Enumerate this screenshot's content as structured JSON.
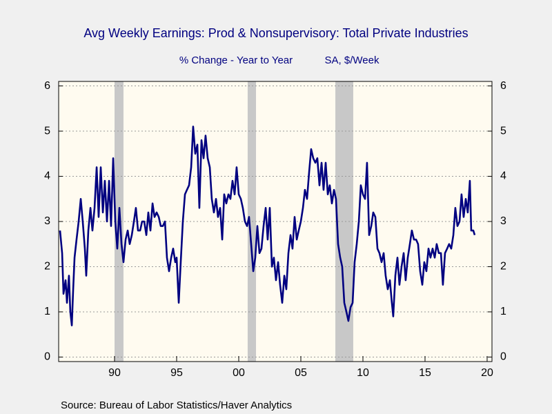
{
  "chart_data": {
    "type": "line",
    "title": "Avg Weekly Earnings: Prod & Nonsupervisory: Total Private Industries",
    "subtitle": [
      "% Change - Year to Year",
      "SA, $/Week"
    ],
    "source": "Source:  Bureau of Labor Statistics/Haver Analytics",
    "xlim": [
      1985.5,
      2020.39
    ],
    "xticks": [
      {
        "value": 1990,
        "label": "90"
      },
      {
        "value": 1995,
        "label": "95"
      },
      {
        "value": 2000,
        "label": "00"
      },
      {
        "value": 2005,
        "label": "05"
      },
      {
        "value": 2010,
        "label": "10"
      },
      {
        "value": 2015,
        "label": "15"
      },
      {
        "value": 2020,
        "label": "20"
      }
    ],
    "ylim": [
      -0.1,
      6.1
    ],
    "yticks": [
      0,
      1,
      2,
      3,
      4,
      5,
      6
    ],
    "grid": true,
    "shaded": [
      [
        1990.0,
        1990.72
      ],
      [
        2000.72,
        2001.39
      ],
      [
        2007.78,
        2009.22
      ]
    ],
    "shade_color": "#c8c8c8",
    "x": [
      1985.61,
      1985.78,
      1985.89,
      1986.06,
      1986.17,
      1986.33,
      1986.44,
      1986.56,
      1986.67,
      1986.78,
      1986.94,
      1987.11,
      1987.28,
      1987.44,
      1987.61,
      1987.72,
      1987.89,
      1988.06,
      1988.22,
      1988.39,
      1988.56,
      1988.72,
      1988.89,
      1989.06,
      1989.22,
      1989.39,
      1989.56,
      1989.72,
      1989.89,
      1990.06,
      1990.22,
      1990.39,
      1990.56,
      1990.72,
      1990.89,
      1991.06,
      1991.22,
      1991.39,
      1991.56,
      1991.72,
      1991.89,
      1992.06,
      1992.22,
      1992.39,
      1992.56,
      1992.72,
      1992.89,
      1993.06,
      1993.22,
      1993.39,
      1993.56,
      1993.72,
      1993.89,
      1994.06,
      1994.22,
      1994.39,
      1994.56,
      1994.72,
      1994.89,
      1995.0,
      1995.17,
      1995.33,
      1995.5,
      1995.67,
      1995.83,
      1996.0,
      1996.17,
      1996.33,
      1996.5,
      1996.67,
      1996.83,
      1997.0,
      1997.17,
      1997.33,
      1997.5,
      1997.67,
      1997.83,
      1998.0,
      1998.17,
      1998.33,
      1998.5,
      1998.67,
      1998.83,
      1999.0,
      1999.17,
      1999.33,
      1999.5,
      1999.67,
      1999.83,
      2000.0,
      2000.17,
      2000.33,
      2000.5,
      2000.67,
      2000.83,
      2001.0,
      2001.17,
      2001.33,
      2001.5,
      2001.67,
      2001.83,
      2002.0,
      2002.17,
      2002.33,
      2002.5,
      2002.67,
      2002.83,
      2003.0,
      2003.17,
      2003.33,
      2003.5,
      2003.67,
      2003.83,
      2004.0,
      2004.17,
      2004.33,
      2004.5,
      2004.67,
      2004.83,
      2005.0,
      2005.17,
      2005.33,
      2005.5,
      2005.67,
      2005.83,
      2006.0,
      2006.17,
      2006.33,
      2006.5,
      2006.67,
      2006.83,
      2007.0,
      2007.17,
      2007.33,
      2007.5,
      2007.67,
      2007.83,
      2008.0,
      2008.17,
      2008.33,
      2008.5,
      2008.67,
      2008.83,
      2009.0,
      2009.17,
      2009.33,
      2009.5,
      2009.67,
      2009.83,
      2010.0,
      2010.17,
      2010.33,
      2010.5,
      2010.67,
      2010.83,
      2011.0,
      2011.17,
      2011.33,
      2011.5,
      2011.67,
      2011.83,
      2012.0,
      2012.17,
      2012.33,
      2012.44,
      2012.61,
      2012.78,
      2012.94,
      2013.11,
      2013.28,
      2013.44,
      2013.61,
      2013.78,
      2013.94,
      2014.11,
      2014.28,
      2014.44,
      2014.61,
      2014.78,
      2014.94,
      2015.11,
      2015.28,
      2015.44,
      2015.61,
      2015.78,
      2015.94,
      2016.11,
      2016.28,
      2016.44,
      2016.61,
      2016.78,
      2016.94,
      2017.11,
      2017.28,
      2017.44,
      2017.61,
      2017.78,
      2017.94,
      2018.11,
      2018.28,
      2018.44,
      2018.61,
      2018.72,
      2018.89,
      2019.0
    ],
    "series": [
      {
        "name": "Avg Weekly Earnings",
        "color": "#000080",
        "values": [
          2.8,
          2.3,
          1.4,
          1.7,
          1.2,
          1.8,
          1.0,
          0.7,
          1.5,
          2.2,
          2.6,
          3.0,
          3.5,
          3.0,
          2.4,
          1.8,
          2.8,
          3.3,
          2.8,
          3.3,
          4.2,
          3.1,
          4.2,
          3.2,
          3.9,
          3.0,
          3.9,
          2.9,
          4.4,
          3.0,
          2.4,
          3.3,
          2.5,
          2.1,
          2.6,
          2.8,
          2.5,
          2.7,
          3.0,
          3.3,
          2.8,
          2.8,
          3.0,
          3.0,
          2.7,
          3.2,
          2.8,
          3.4,
          3.1,
          3.2,
          3.1,
          2.9,
          2.9,
          3.0,
          2.2,
          1.9,
          2.2,
          2.4,
          2.1,
          2.2,
          1.2,
          2.1,
          3.0,
          3.6,
          3.7,
          3.8,
          4.2,
          5.1,
          4.5,
          4.7,
          3.3,
          4.8,
          4.4,
          4.9,
          4.4,
          4.2,
          3.5,
          3.2,
          3.5,
          3.1,
          3.3,
          2.6,
          3.6,
          3.4,
          3.6,
          3.5,
          3.9,
          3.6,
          4.2,
          3.6,
          3.5,
          3.3,
          3.0,
          2.9,
          3.1,
          2.5,
          1.9,
          2.2,
          2.9,
          2.3,
          2.4,
          2.9,
          3.3,
          2.6,
          3.3,
          2.0,
          2.2,
          1.7,
          2.1,
          1.6,
          1.2,
          1.8,
          1.5,
          2.3,
          2.7,
          2.4,
          3.1,
          2.6,
          2.8,
          3.0,
          3.3,
          3.7,
          3.5,
          4.1,
          4.6,
          4.4,
          4.3,
          4.4,
          3.8,
          4.3,
          3.7,
          4.3,
          3.6,
          3.8,
          3.4,
          3.7,
          3.5,
          2.5,
          2.2,
          2.0,
          1.2,
          1.0,
          0.8,
          1.1,
          1.2,
          2.1,
          2.5,
          3.0,
          3.8,
          3.6,
          3.5,
          4.3,
          2.7,
          2.9,
          3.2,
          3.1,
          2.4,
          2.3,
          2.1,
          2.3,
          1.8,
          1.5,
          1.7,
          1.2,
          0.9,
          1.8,
          2.2,
          1.6,
          2.0,
          2.3,
          1.7,
          2.2,
          2.5,
          2.8,
          2.6,
          2.6,
          2.5,
          1.9,
          1.6,
          2.1,
          1.9,
          2.4,
          2.2,
          2.4,
          2.2,
          2.5,
          2.3,
          2.3,
          1.6,
          2.3,
          2.4,
          2.5,
          2.4,
          2.7,
          3.3,
          2.9,
          3.0,
          3.6,
          3.1,
          3.5,
          3.2,
          3.9,
          2.8,
          2.8,
          2.7
        ]
      }
    ]
  }
}
